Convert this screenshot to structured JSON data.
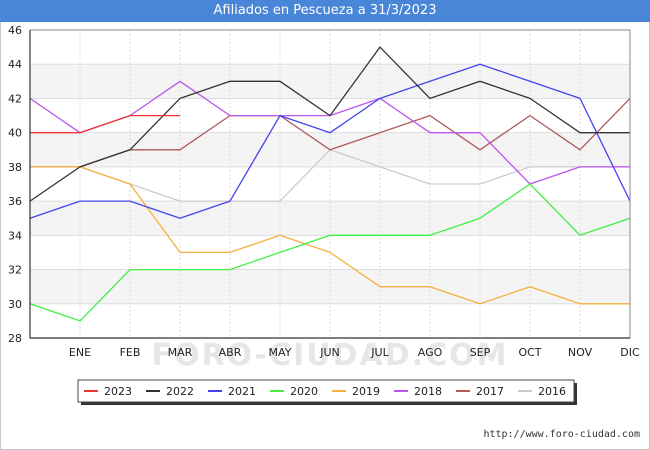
{
  "title": "Afiliados en Pescueza a 31/3/2023",
  "source": "http://www.foro-ciudad.com",
  "watermark": "FORO-CIUDAD.COM",
  "chart_data": {
    "type": "line",
    "title": "Afiliados en Pescueza a 31/3/2023",
    "xlabel": "",
    "ylabel": "",
    "categories": [
      "",
      "ENE",
      "FEB",
      "MAR",
      "ABR",
      "MAY",
      "JUN",
      "JUL",
      "AGO",
      "SEP",
      "OCT",
      "NOV",
      "DIC"
    ],
    "ylim": [
      28,
      46
    ],
    "yticks": [
      28,
      30,
      32,
      34,
      36,
      38,
      40,
      42,
      44,
      46
    ],
    "grid": true,
    "legend_position": "bottom",
    "series": [
      {
        "name": "2023",
        "color": "#ee3333",
        "values": [
          40,
          40,
          41,
          41,
          null,
          null,
          null,
          null,
          null,
          null,
          null,
          null,
          null
        ]
      },
      {
        "name": "2022",
        "color": "#333333",
        "values": [
          36,
          38,
          39,
          42,
          43,
          43,
          41,
          45,
          42,
          43,
          42,
          40,
          40
        ]
      },
      {
        "name": "2021",
        "color": "#4444ee",
        "values": [
          35,
          36,
          36,
          35,
          36,
          41,
          40,
          42,
          43,
          44,
          43,
          42,
          36
        ]
      },
      {
        "name": "2020",
        "color": "#44ee44",
        "values": [
          30,
          29,
          32,
          32,
          32,
          33,
          34,
          34,
          34,
          35,
          37,
          34,
          35
        ]
      },
      {
        "name": "2019",
        "color": "#f4b040",
        "values": [
          38,
          38,
          37,
          33,
          33,
          34,
          33,
          31,
          31,
          30,
          31,
          30,
          30
        ]
      },
      {
        "name": "2018",
        "color": "#bb55ee",
        "values": [
          42,
          40,
          41,
          43,
          41,
          41,
          41,
          42,
          40,
          40,
          37,
          38,
          38
        ]
      },
      {
        "name": "2017",
        "color": "#b05a5a",
        "values": [
          38,
          38,
          39,
          39,
          41,
          41,
          39,
          40,
          41,
          39,
          41,
          39,
          42
        ]
      },
      {
        "name": "2016",
        "color": "#cccccc",
        "values": [
          null,
          38,
          37,
          36,
          36,
          36,
          39,
          38,
          37,
          37,
          38,
          38,
          38
        ]
      }
    ]
  }
}
